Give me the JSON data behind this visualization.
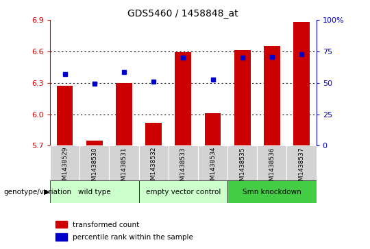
{
  "title": "GDS5460 / 1458848_at",
  "samples": [
    "GSM1438529",
    "GSM1438530",
    "GSM1438531",
    "GSM1438532",
    "GSM1438533",
    "GSM1438534",
    "GSM1438535",
    "GSM1438536",
    "GSM1438537"
  ],
  "red_values": [
    6.27,
    5.75,
    6.3,
    5.92,
    6.59,
    6.01,
    6.61,
    6.65,
    6.88
  ],
  "blue_values": [
    6.38,
    6.29,
    6.4,
    6.31,
    6.54,
    6.33,
    6.54,
    6.55,
    6.57
  ],
  "ylim": [
    5.7,
    6.9
  ],
  "yticks": [
    5.7,
    6.0,
    6.3,
    6.6,
    6.9
  ],
  "y2ticks": [
    0,
    25,
    50,
    75,
    100
  ],
  "bar_color": "#CC0000",
  "dot_color": "#0000CC",
  "bar_bottom": 5.7,
  "groups": [
    {
      "label": "wild type",
      "start": 0,
      "end": 3,
      "color": "#ccffcc"
    },
    {
      "label": "empty vector control",
      "start": 3,
      "end": 6,
      "color": "#ccffcc"
    },
    {
      "label": "Smn knockdown",
      "start": 6,
      "end": 9,
      "color": "#44cc44"
    }
  ],
  "group_label": "genotype/variation",
  "legend_items": [
    {
      "color": "#CC0000",
      "label": "transformed count"
    },
    {
      "color": "#0000CC",
      "label": "percentile rank within the sample"
    }
  ],
  "grid_color": "black",
  "bg_color": "#ffffff",
  "sample_box_color": "#d3d3d3",
  "y2label_color": "#0000CC"
}
